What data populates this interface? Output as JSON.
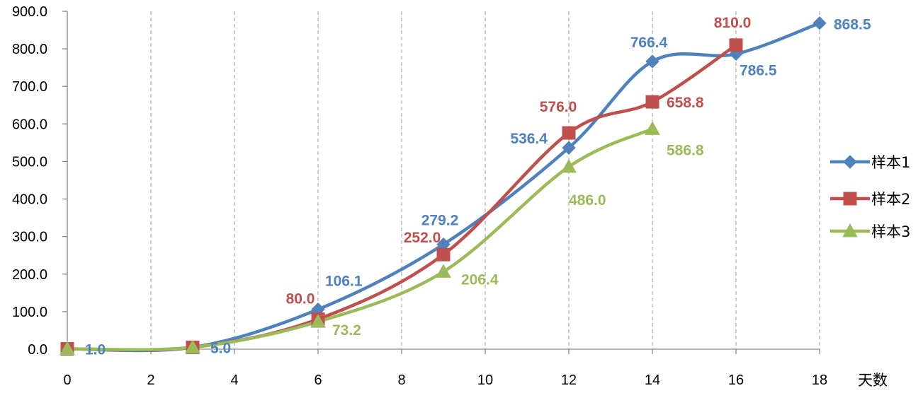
{
  "chart_data": {
    "type": "line",
    "x_unit_label": "天数",
    "xlim": [
      0,
      18
    ],
    "ylim": [
      0,
      900
    ],
    "x_ticks": [
      "0",
      "2",
      "4",
      "6",
      "8",
      "10",
      "12",
      "14",
      "16",
      "18"
    ],
    "y_ticks": [
      "0.0",
      "100.0",
      "200.0",
      "300.0",
      "400.0",
      "500.0",
      "600.0",
      "700.0",
      "800.0",
      "900.0"
    ],
    "grid": "vertical-dashed",
    "legend_position": "right",
    "smooth": true,
    "series": [
      {
        "name": "样本1",
        "color": "#4F81BD",
        "marker": "diamond",
        "points": [
          [
            0,
            1.0
          ],
          [
            3,
            5.0
          ],
          [
            6,
            106.1
          ],
          [
            9,
            279.2
          ],
          [
            12,
            536.4
          ],
          [
            14,
            766.4
          ],
          [
            16,
            786.5
          ],
          [
            18,
            868.5
          ]
        ],
        "labels": [
          "1.0",
          "5.0",
          "106.1",
          "279.2",
          "536.4",
          "766.4",
          "786.5",
          "868.5"
        ]
      },
      {
        "name": "样本2",
        "color": "#C0504D",
        "marker": "square",
        "points": [
          [
            0,
            1.0
          ],
          [
            3,
            5.0
          ],
          [
            6,
            80.0
          ],
          [
            9,
            252.0
          ],
          [
            12,
            576.0
          ],
          [
            14,
            658.8
          ],
          [
            16,
            810.0
          ]
        ],
        "labels": [
          "",
          "",
          "80.0",
          "252.0",
          "576.0",
          "658.8",
          "810.0"
        ]
      },
      {
        "name": "样本3",
        "color": "#9BBB59",
        "marker": "triangle",
        "points": [
          [
            0,
            1.0
          ],
          [
            3,
            5.0
          ],
          [
            6,
            73.2
          ],
          [
            9,
            206.4
          ],
          [
            12,
            486.0
          ],
          [
            14,
            586.8
          ]
        ],
        "labels": [
          "",
          "",
          "73.2",
          "206.4",
          "486.0",
          "586.8"
        ]
      }
    ]
  }
}
